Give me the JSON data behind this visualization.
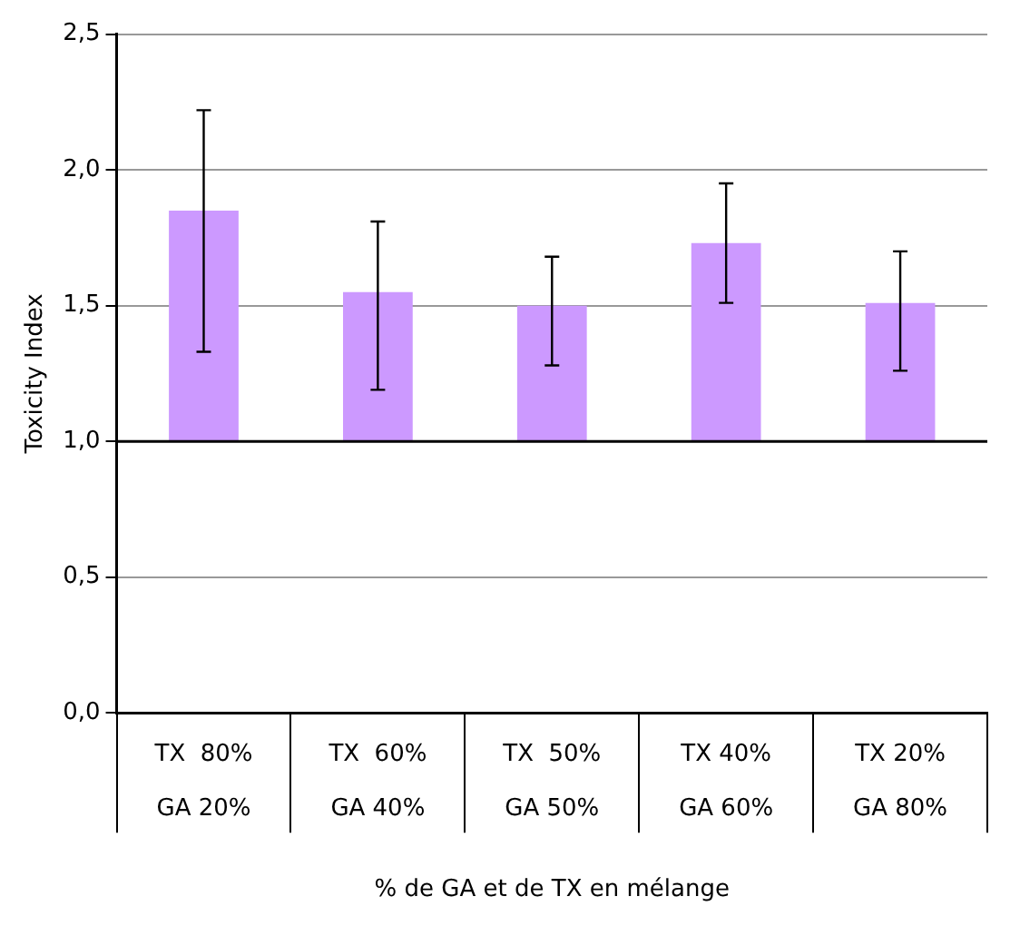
{
  "chart_data": {
    "type": "bar",
    "xlabel": "% de GA et de TX en mélange",
    "ylabel": "Toxicity Index",
    "categories": [
      "TX  80%\nGA 20%",
      "TX  60%\nGA 40%",
      "TX  50%\nGA 50%",
      "TX 40%\nGA 60%",
      "TX 20%\nGA 80%"
    ],
    "base": [
      1,
      1,
      1,
      1,
      1
    ],
    "values": [
      0.85,
      0.55,
      0.5,
      0.73,
      0.51
    ],
    "errors": [
      [
        1.33,
        2.22
      ],
      [
        1.19,
        1.81
      ],
      [
        1.28,
        1.68
      ],
      [
        1.51,
        1.95
      ],
      [
        1.26,
        1.7
      ]
    ],
    "color": "#cc99ff",
    "ylim": [
      0,
      2.5
    ],
    "yticks": [
      {
        "value": 0,
        "label": "0,0"
      },
      {
        "value": 0.5,
        "label": "0,5"
      },
      {
        "value": 1,
        "label": "1,0"
      },
      {
        "value": 1.5,
        "label": "1,5"
      },
      {
        "value": 2,
        "label": "2,0"
      },
      {
        "value": 2.5,
        "label": "2,5"
      }
    ],
    "ref_lines": [
      {
        "axis": "y",
        "value": 1,
        "color": "#000000"
      }
    ],
    "grid": "y",
    "legend": false
  }
}
